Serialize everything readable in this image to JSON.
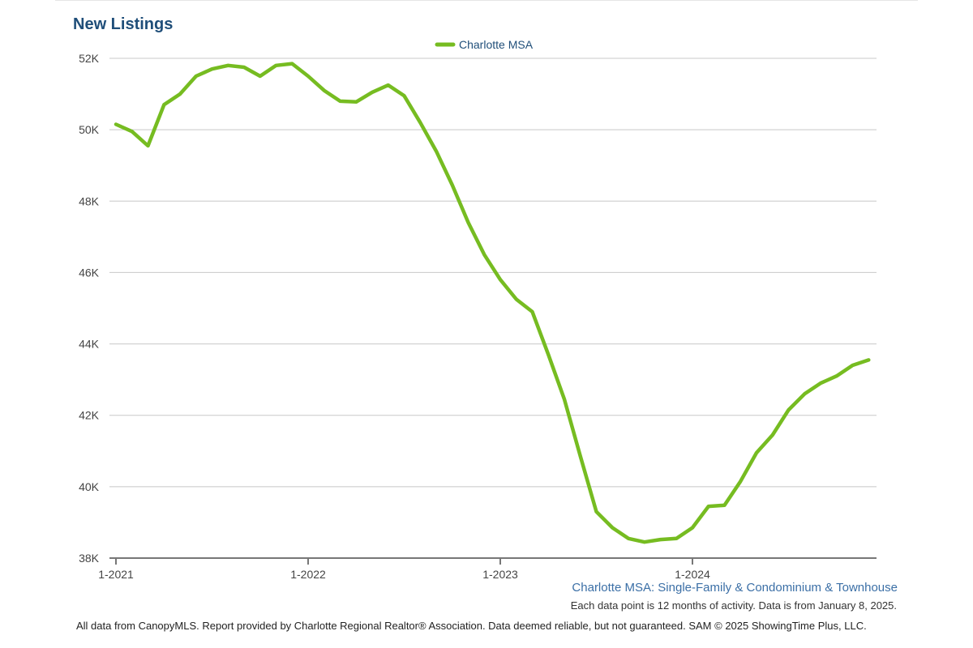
{
  "chart_data": {
    "type": "line",
    "title": "New Listings",
    "subtitle": "Charlotte MSA: Single-Family & Condominium & Townhouse",
    "note": "Each data point is 12 months of activity. Data is from January 8, 2025.",
    "footer": "All data from CanopyMLS. Report provided by Charlotte Regional Realtor® Association. Data deemed reliable, but not guaranteed. SAM © 2025 ShowingTime Plus, LLC.",
    "xlabel": "",
    "ylabel": "",
    "ylim": [
      38000,
      52000
    ],
    "y_ticks": [
      38000,
      40000,
      42000,
      44000,
      46000,
      48000,
      50000,
      52000
    ],
    "y_tick_labels": [
      "38K",
      "40K",
      "42K",
      "44K",
      "46K",
      "48K",
      "50K",
      "52K"
    ],
    "x_tick_labels": [
      "1-2021",
      "1-2022",
      "1-2023",
      "1-2024"
    ],
    "grid": true,
    "legend_position": "top-center",
    "colors": {
      "series": "#76bc21",
      "title": "#1f4e79",
      "subtitle": "#3b6fa6",
      "grid": "#c8c8c8",
      "axis": "#777777"
    },
    "series": [
      {
        "name": "Charlotte MSA",
        "x": [
          "1-2021",
          "2-2021",
          "3-2021",
          "4-2021",
          "5-2021",
          "6-2021",
          "7-2021",
          "8-2021",
          "9-2021",
          "10-2021",
          "11-2021",
          "12-2021",
          "1-2022",
          "2-2022",
          "3-2022",
          "4-2022",
          "5-2022",
          "6-2022",
          "7-2022",
          "8-2022",
          "9-2022",
          "10-2022",
          "11-2022",
          "12-2022",
          "1-2023",
          "2-2023",
          "3-2023",
          "4-2023",
          "5-2023",
          "6-2023",
          "7-2023",
          "8-2023",
          "9-2023",
          "10-2023",
          "11-2023",
          "12-2023",
          "1-2024",
          "2-2024",
          "3-2024",
          "4-2024",
          "5-2024",
          "6-2024",
          "7-2024",
          "8-2024",
          "9-2024",
          "10-2024",
          "11-2024",
          "12-2024"
        ],
        "values": [
          50150,
          49950,
          49550,
          50700,
          51000,
          51500,
          51700,
          51800,
          51750,
          51500,
          51800,
          51850,
          51500,
          51100,
          50800,
          50780,
          51050,
          51250,
          50950,
          50200,
          49400,
          48450,
          47400,
          46500,
          45800,
          45250,
          44900,
          43700,
          42450,
          40850,
          39300,
          38850,
          38550,
          38450,
          38520,
          38550,
          38850,
          39450,
          39480,
          40150,
          40950,
          41450,
          42150,
          42600,
          42900,
          43100,
          43400,
          43550
        ]
      }
    ]
  }
}
